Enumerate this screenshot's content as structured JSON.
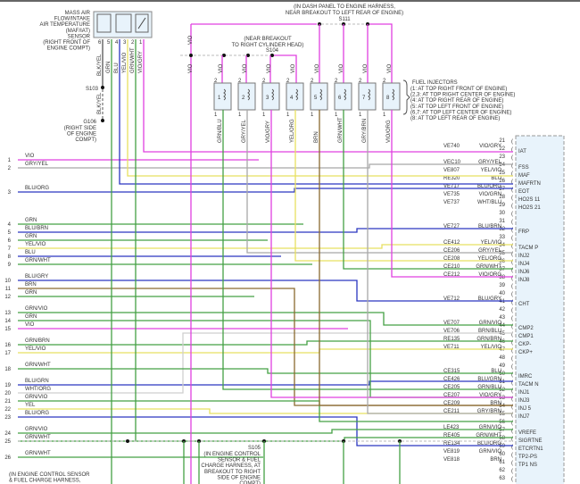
{
  "maf_sensor": {
    "title_lines": [
      "MASS AIR",
      "FLOW/INTAKE",
      "AIR TEMPERATURE",
      "(MAF/IAT)",
      "SENSOR",
      "(RIGHT FRONT OF",
      "ENGINE COMPT)"
    ],
    "pins": [
      {
        "pin": "6",
        "wire": "BLK/YEL"
      },
      {
        "pin": "5",
        "wire": "GRN"
      },
      {
        "pin": "4",
        "wire": "BLU"
      },
      {
        "pin": "3",
        "wire": "YEL/VIO"
      },
      {
        "pin": "2",
        "wire": "GRN/WHT"
      },
      {
        "pin": "1",
        "wire": "VIO/GRY"
      }
    ],
    "splice": "S103",
    "ground": "G106",
    "ground_note_lines": [
      "(RIGHT SIDE",
      "OF ENGINE",
      "COMPT)"
    ],
    "ground_wire": "BLK/YEL"
  },
  "splice_s111": {
    "id": "S111",
    "note_lines": [
      "(IN DASH PANEL TO ENGINE HARNESS,",
      "NEAR BREAKOUT TO LEFT REAR OF ENGINE)"
    ]
  },
  "splice_s104": {
    "id": "S104",
    "note_lines": [
      "(NEAR BREAKOUT",
      "TO RIGHT CYLINDER HEAD)"
    ]
  },
  "splice_s105": {
    "id": "S105",
    "note_lines": [
      "(IN ENGINE CONTROL",
      "SENSOR & FUEL",
      "CHARGE HARNESS, AT",
      "BREAKOUT TO RIGHT",
      "SIDE OF ENGINE",
      "COMPT)"
    ]
  },
  "bottom_note_lines": [
    "(IN ENGINE CONTROL SENSOR",
    "& FUEL CHARGE HARNESS,"
  ],
  "feed_wire": "VIO",
  "injectors": {
    "title": "FUEL INJECTORS",
    "locations": [
      "(1: AT TOP RIGHT FRONT OF ENGINE)",
      "(2,3: AT TOP RIGHT CENTER OF ENGINE)",
      "(4: AT TOP RIGHT REAR OF ENGINE)",
      "(5: AT TOP LEFT FRONT OF ENGINE)",
      "(6,7: AT TOP LEFT CENTER OF ENGINE)",
      "(8: AT TOP LEFT REAR OF ENGINE)"
    ],
    "items": [
      {
        "num": "1",
        "pin_top": "2",
        "pin_bottom": "1",
        "feed": "VIO",
        "control": "GRN/BLU"
      },
      {
        "num": "2",
        "pin_top": "2",
        "pin_bottom": "1",
        "feed": "VIO",
        "control": "GRY/YEL"
      },
      {
        "num": "3",
        "pin_top": "2",
        "pin_bottom": "1",
        "feed": "VIO",
        "control": "VIO/GRY"
      },
      {
        "num": "4",
        "pin_top": "2",
        "pin_bottom": "1",
        "feed": "VIO",
        "control": "YEL/ORG"
      },
      {
        "num": "5",
        "pin_top": "2",
        "pin_bottom": "1",
        "feed": "VIO",
        "control": "BRN"
      },
      {
        "num": "6",
        "pin_top": "2",
        "pin_bottom": "1",
        "feed": "VIO",
        "control": "GRN/WHT"
      },
      {
        "num": "7",
        "pin_top": "2",
        "pin_bottom": "1",
        "feed": "VIO",
        "control": "GRY/BRN"
      },
      {
        "num": "8",
        "pin_top": "2",
        "pin_bottom": "1",
        "feed": "VIO",
        "control": "VIO/ORG"
      }
    ]
  },
  "left_connector": [
    {
      "pin": "1",
      "wire": "VIO"
    },
    {
      "pin": "2",
      "wire": "GRY/YEL"
    },
    {
      "pin": "3",
      "wire": "BLU/ORG"
    },
    {
      "pin": "4",
      "wire": "GRN"
    },
    {
      "pin": "5",
      "wire": "BLU/BRN"
    },
    {
      "pin": "6",
      "wire": "GRN"
    },
    {
      "pin": "7",
      "wire": "YEL/VIO"
    },
    {
      "pin": "8",
      "wire": "BLU"
    },
    {
      "pin": "9",
      "wire": "GRN/WHT"
    },
    {
      "pin": "10",
      "wire": "BLU/GRY"
    },
    {
      "pin": "11",
      "wire": "BRN"
    },
    {
      "pin": "12",
      "wire": "GRN"
    },
    {
      "pin": "13",
      "wire": "GRN/VIO"
    },
    {
      "pin": "14",
      "wire": "GRN"
    },
    {
      "pin": "15",
      "wire": "VIO"
    },
    {
      "pin": "16",
      "wire": "GRN/BRN"
    },
    {
      "pin": "17",
      "wire": "YEL/VIO"
    },
    {
      "pin": "18",
      "wire": "GRN/WHT"
    },
    {
      "pin": "19",
      "wire": "BLU/GRN"
    },
    {
      "pin": "20",
      "wire": "WHT/ORG"
    },
    {
      "pin": "21",
      "wire": "GRN/VIO"
    },
    {
      "pin": "22",
      "wire": "YEL"
    },
    {
      "pin": "23",
      "wire": "BLU/ORG"
    },
    {
      "pin": "24",
      "wire": "GRN/VIO"
    },
    {
      "pin": "25",
      "wire": "GRN/WHT"
    },
    {
      "pin": "26",
      "wire": "GRN/WHT"
    }
  ],
  "pcm_connector": [
    {
      "pin": "21",
      "circuit": "",
      "wire": "",
      "function": ""
    },
    {
      "pin": "22",
      "circuit": "VE740",
      "wire": "VIO/GRY",
      "function": "IAT"
    },
    {
      "pin": "23",
      "circuit": "",
      "wire": "",
      "function": ""
    },
    {
      "pin": "24",
      "circuit": "VEC10",
      "wire": "GRY/YEL",
      "function": "FSS"
    },
    {
      "pin": "25",
      "circuit": "VE807",
      "wire": "YEL/VIO",
      "function": "MAF"
    },
    {
      "pin": "26",
      "circuit": "RE320",
      "wire": "BLU",
      "function": "MAFRTN"
    },
    {
      "pin": "27",
      "circuit": "VE717",
      "wire": "BLU/ORG",
      "function": "EOT"
    },
    {
      "pin": "28",
      "circuit": "VE735",
      "wire": "VIO/GRN",
      "function": "HO2S 11"
    },
    {
      "pin": "29",
      "circuit": "VE737",
      "wire": "WHT/BLU",
      "function": "HO2S 21"
    },
    {
      "pin": "30",
      "circuit": "",
      "wire": "",
      "function": ""
    },
    {
      "pin": "31",
      "circuit": "",
      "wire": "",
      "function": ""
    },
    {
      "pin": "32",
      "circuit": "VE727",
      "wire": "BLU/BRN",
      "function": "FRP"
    },
    {
      "pin": "33",
      "circuit": "",
      "wire": "",
      "function": ""
    },
    {
      "pin": "34",
      "circuit": "CE412",
      "wire": "YEL/VIO",
      "function": "TACM P"
    },
    {
      "pin": "35",
      "circuit": "CE206",
      "wire": "GRY/YEL",
      "function": "INJ2"
    },
    {
      "pin": "36",
      "circuit": "CE208",
      "wire": "YEL/ORG",
      "function": "INJ4"
    },
    {
      "pin": "37",
      "circuit": "CE210",
      "wire": "GRN/WHT",
      "function": "INJ6"
    },
    {
      "pin": "38",
      "circuit": "CE212",
      "wire": "VIO/ORG",
      "function": "INJ8"
    },
    {
      "pin": "39",
      "circuit": "",
      "wire": "",
      "function": ""
    },
    {
      "pin": "40",
      "circuit": "",
      "wire": "",
      "function": ""
    },
    {
      "pin": "41",
      "circuit": "VE712",
      "wire": "BLU/GRY",
      "function": "CHT"
    },
    {
      "pin": "42",
      "circuit": "",
      "wire": "",
      "function": ""
    },
    {
      "pin": "43",
      "circuit": "",
      "wire": "",
      "function": ""
    },
    {
      "pin": "44",
      "circuit": "VE707",
      "wire": "GRN/VIO",
      "function": "CMP2"
    },
    {
      "pin": "45",
      "circuit": "VE706",
      "wire": "BRN/BLU",
      "function": "CMP1"
    },
    {
      "pin": "46",
      "circuit": "RE135",
      "wire": "GRN/BRN",
      "function": "CKP-"
    },
    {
      "pin": "47",
      "circuit": "VE711",
      "wire": "YEL/VIO",
      "function": "CKP+"
    },
    {
      "pin": "48",
      "circuit": "",
      "wire": "",
      "function": ""
    },
    {
      "pin": "49",
      "circuit": "",
      "wire": "",
      "function": ""
    },
    {
      "pin": "50",
      "circuit": "CE315",
      "wire": "BLU",
      "function": "IMRC"
    },
    {
      "pin": "51",
      "circuit": "CE426",
      "wire": "BLU/GRN",
      "function": "TACM N"
    },
    {
      "pin": "52",
      "circuit": "CE205",
      "wire": "GRN/BLU",
      "function": "INJ1"
    },
    {
      "pin": "53",
      "circuit": "CE207",
      "wire": "VIO/GRY",
      "function": "INJ3"
    },
    {
      "pin": "54",
      "circuit": "CE209",
      "wire": "BRN",
      "function": "INJ 5"
    },
    {
      "pin": "55",
      "circuit": "CE211",
      "wire": "GRY/BRN",
      "function": "INJ7"
    },
    {
      "pin": "56",
      "circuit": "",
      "wire": "",
      "function": ""
    },
    {
      "pin": "57",
      "circuit": "LE423",
      "wire": "GRN/VIO",
      "function": "VREFE"
    },
    {
      "pin": "58",
      "circuit": "RE405",
      "wire": "GRN/WHT",
      "function": "SIGRTNE"
    },
    {
      "pin": "59",
      "circuit": "RE134",
      "wire": "BLU/ORG",
      "function": "ETCRTN1"
    },
    {
      "pin": "60",
      "circuit": "VE819",
      "wire": "GRN/VIO",
      "function": "TP2-PS"
    },
    {
      "pin": "61",
      "circuit": "VE818",
      "wire": "BRN",
      "function": "TP1 NS"
    },
    {
      "pin": "62",
      "circuit": "",
      "wire": "",
      "function": ""
    },
    {
      "pin": "63",
      "circuit": "",
      "wire": "",
      "function": ""
    }
  ],
  "wire_colors": {
    "VIO": "#e040e0",
    "GRY": "#a8a8a8",
    "YEL": "#e8e060",
    "BLU": "#2a36c0",
    "ORG": "#f0a050",
    "GRN": "#44a044",
    "WHT": "#cfcfcf",
    "BRN": "#8a6a30",
    "BLK": "#555555"
  },
  "pcm_box_fill": "#e8f3fb"
}
